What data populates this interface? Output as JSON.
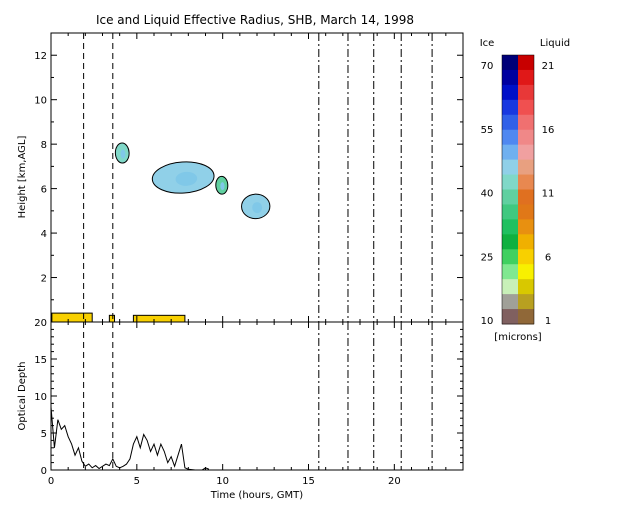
{
  "chart_data": [
    {
      "type": "heatmap",
      "title": "Ice and Liquid Effective Radius, SHB, March 14, 1998",
      "xlabel": "",
      "ylabel": "Height [km,AGL]",
      "xlim": [
        0,
        24
      ],
      "ylim": [
        0,
        13
      ],
      "x_ticks": [
        "0",
        "5",
        "10",
        "15",
        "20"
      ],
      "y_ticks": [
        "2",
        "4",
        "6",
        "8",
        "10",
        "12"
      ],
      "dashed_times": [
        1.9,
        3.6
      ],
      "dashdot_times": [
        15.6,
        17.3,
        18.8,
        20.4,
        22.2
      ],
      "ice_regions": [
        {
          "t0": 3.75,
          "t1": 4.55,
          "h_center": 7.6,
          "h_half": 0.45,
          "radius": 42
        },
        {
          "t0": 5.9,
          "t1": 9.5,
          "h_center": 6.5,
          "h_half": 0.7,
          "radius": 45
        },
        {
          "t0": 9.6,
          "t1": 10.3,
          "h_center": 6.15,
          "h_half": 0.4,
          "radius": 40
        },
        {
          "t0": 11.1,
          "t1": 12.75,
          "h_center": 5.2,
          "h_half": 0.55,
          "radius": 46
        }
      ],
      "liquid_regions": [
        {
          "t0": 0.05,
          "t1": 2.4,
          "h_center": 0.2,
          "h_half": 0.2,
          "radius": 6
        },
        {
          "t0": 3.4,
          "t1": 3.7,
          "h_center": 0.15,
          "h_half": 0.15,
          "radius": 6
        },
        {
          "t0": 4.8,
          "t1": 7.8,
          "h_center": 0.15,
          "h_half": 0.15,
          "radius": 6
        }
      ]
    },
    {
      "type": "line",
      "title": "",
      "xlabel": "Time (hours, GMT)",
      "ylabel": "Optical Depth",
      "xlim": [
        0,
        24
      ],
      "ylim": [
        0,
        20
      ],
      "x_ticks": [
        "0",
        "5",
        "10",
        "15",
        "20"
      ],
      "y_ticks": [
        "0",
        "5",
        "10",
        "15",
        "20"
      ],
      "series": [
        {
          "x": [
            0.0,
            0.2,
            0.4,
            0.6,
            0.8,
            1.0,
            1.2,
            1.4,
            1.6,
            1.8,
            2.0,
            2.2,
            2.4,
            2.6,
            2.8,
            3.0,
            3.2,
            3.4,
            3.6,
            3.8,
            4.0,
            4.2,
            4.4,
            4.6,
            4.8,
            5.0,
            5.2,
            5.4,
            5.6,
            5.8,
            6.0,
            6.2,
            6.4,
            6.6,
            6.8,
            7.0,
            7.2,
            7.4,
            7.6,
            7.8,
            8.0,
            8.4,
            8.8,
            9.0,
            9.2
          ],
          "values": [
            8.5,
            3.0,
            6.8,
            5.5,
            6.0,
            4.5,
            3.5,
            2.0,
            3.0,
            1.2,
            0.5,
            0.8,
            0.3,
            0.6,
            0.2,
            0.5,
            0.8,
            0.6,
            1.5,
            0.5,
            0.3,
            0.5,
            0.8,
            1.5,
            3.5,
            4.5,
            3.0,
            4.8,
            4.0,
            2.5,
            3.5,
            2.0,
            3.5,
            2.5,
            1.0,
            1.8,
            0.5,
            2.0,
            3.5,
            0.3,
            0.1,
            0.0,
            0.0,
            0.3,
            0.1
          ]
        }
      ]
    }
  ],
  "legend": {
    "ice_label": "Ice",
    "liquid_label": "Liquid",
    "units_label": "[microns]",
    "ice_ticks": [
      "70",
      "55",
      "40",
      "25",
      "10"
    ],
    "liquid_ticks": [
      "21",
      "16",
      "11",
      "6",
      "1"
    ],
    "ice_colors": [
      "#000078",
      "#0000a0",
      "#0010c8",
      "#1838e0",
      "#3060e8",
      "#5088f0",
      "#70b0f0",
      "#90d0e8",
      "#80d8c8",
      "#60d0a0",
      "#40c880",
      "#20c060",
      "#10b040",
      "#40d060",
      "#80e890",
      "#c8f0b8",
      "#a0a098",
      "#806060"
    ],
    "liquid_colors": [
      "#c80000",
      "#e01818",
      "#e83838",
      "#f05050",
      "#f07070",
      "#f08888",
      "#f0a0a0",
      "#e8a080",
      "#e88850",
      "#e07020",
      "#e07818",
      "#e89010",
      "#f0b000",
      "#f8d000",
      "#f8f000",
      "#d8c800",
      "#b8a020",
      "#906838"
    ]
  }
}
